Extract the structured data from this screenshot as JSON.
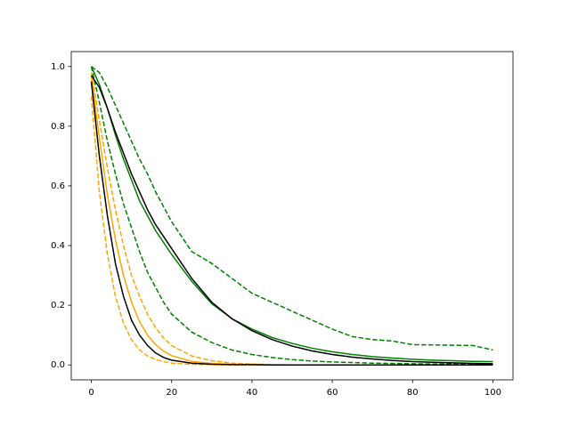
{
  "chart_data": {
    "type": "line",
    "x": [
      0,
      2,
      4,
      6,
      8,
      10,
      12,
      14,
      16,
      18,
      20,
      25,
      30,
      35,
      40,
      45,
      50,
      55,
      60,
      65,
      70,
      75,
      80,
      85,
      90,
      95,
      100
    ],
    "xlim": [
      -5,
      105
    ],
    "xticks": [
      0,
      20,
      40,
      60,
      80,
      100
    ],
    "ylim": [
      -0.05,
      1.05
    ],
    "yticks": [
      {
        "value": 0,
        "label": "0.0"
      },
      {
        "value": 0.2,
        "label": "0.2"
      },
      {
        "value": 0.4,
        "label": "0.4"
      },
      {
        "value": 0.6,
        "label": "0.6"
      },
      {
        "value": 0.8,
        "label": "0.8"
      },
      {
        "value": 1,
        "label": "1.0"
      }
    ],
    "grid": false,
    "series": [
      {
        "color": "green",
        "dashed": true,
        "values": [
          1.0,
          0.98,
          0.93,
          0.87,
          0.81,
          0.75,
          0.69,
          0.64,
          0.58,
          0.53,
          0.48,
          0.38,
          0.34,
          0.29,
          0.24,
          0.21,
          0.18,
          0.15,
          0.12,
          0.095,
          0.085,
          0.08,
          0.068,
          0.067,
          0.066,
          0.065,
          0.05
        ]
      },
      {
        "color": "green",
        "dashed": false,
        "values": [
          1.0,
          0.94,
          0.86,
          0.77,
          0.69,
          0.62,
          0.55,
          0.5,
          0.45,
          0.41,
          0.37,
          0.28,
          0.205,
          0.155,
          0.12,
          0.092,
          0.072,
          0.056,
          0.044,
          0.035,
          0.028,
          0.023,
          0.019,
          0.016,
          0.014,
          0.012,
          0.011
        ]
      },
      {
        "color": "green",
        "dashed": true,
        "values": [
          1.0,
          0.88,
          0.75,
          0.64,
          0.54,
          0.46,
          0.38,
          0.31,
          0.26,
          0.21,
          0.17,
          0.11,
          0.075,
          0.05,
          0.035,
          0.025,
          0.018,
          0.013,
          0.01,
          0.008,
          0.006,
          0.005,
          0.004,
          0.003,
          0.003,
          0.002,
          0.002
        ]
      },
      {
        "color": "orange",
        "dashed": true,
        "values": [
          0.98,
          0.82,
          0.66,
          0.52,
          0.4,
          0.3,
          0.23,
          0.17,
          0.125,
          0.09,
          0.065,
          0.03,
          0.014,
          0.006,
          0.003,
          0.001,
          0,
          0,
          0,
          0,
          0,
          0,
          0,
          0,
          0,
          0,
          0
        ]
      },
      {
        "color": "orange",
        "dashed": false,
        "values": [
          0.97,
          0.76,
          0.57,
          0.42,
          0.3,
          0.21,
          0.145,
          0.1,
          0.068,
          0.046,
          0.031,
          0.012,
          0.005,
          0.002,
          0.001,
          0,
          0,
          0,
          0,
          0,
          0,
          0,
          0,
          0,
          0,
          0,
          0
        ]
      },
      {
        "color": "orange",
        "dashed": true,
        "values": [
          0.9,
          0.58,
          0.37,
          0.23,
          0.14,
          0.085,
          0.05,
          0.03,
          0.018,
          0.011,
          0.006,
          0.002,
          0.001,
          0,
          0,
          0,
          0,
          0,
          0,
          0,
          0,
          0,
          0,
          0,
          0,
          0,
          0
        ]
      },
      {
        "color": "black",
        "dashed": false,
        "values": [
          0.95,
          0.7,
          0.5,
          0.34,
          0.23,
          0.15,
          0.1,
          0.065,
          0.04,
          0.025,
          0.016,
          0.006,
          0.002,
          0.001,
          0.001,
          0,
          0,
          0,
          0,
          0,
          0,
          0,
          0,
          0,
          0,
          0,
          0
        ]
      },
      {
        "color": "black",
        "dashed": false,
        "values": [
          0.97,
          0.93,
          0.86,
          0.78,
          0.71,
          0.64,
          0.58,
          0.52,
          0.47,
          0.43,
          0.39,
          0.29,
          0.21,
          0.155,
          0.115,
          0.085,
          0.063,
          0.047,
          0.035,
          0.026,
          0.02,
          0.015,
          0.011,
          0.009,
          0.007,
          0.005,
          0.004
        ]
      }
    ]
  }
}
